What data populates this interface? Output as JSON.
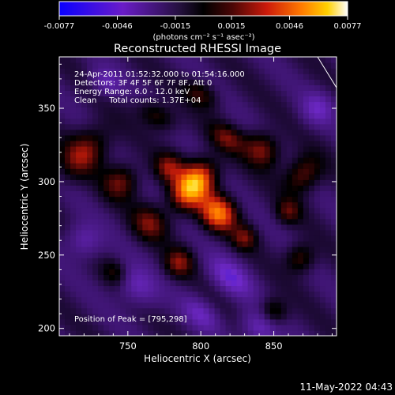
{
  "chart_data": {
    "type": "heatmap",
    "title": "Reconstructed RHESSI Image",
    "xlabel": "Heliocentric X (arcsec)",
    "ylabel": "Heliocentric Y (arcsec)",
    "xlim": [
      703,
      893
    ],
    "ylim": [
      195,
      385
    ],
    "x_ticks": [
      "750",
      "800",
      "850"
    ],
    "x_tick_values": [
      750,
      800,
      850
    ],
    "y_ticks": [
      "200",
      "250",
      "300",
      "350"
    ],
    "y_tick_values": [
      200,
      250,
      300,
      350
    ],
    "colorbar": {
      "ticks": [
        "-0.0077",
        "-0.0046",
        "-0.0015",
        "0.0015",
        "0.0046",
        "0.0077"
      ],
      "tick_values": [
        -0.0077,
        -0.0046,
        -0.0015,
        0.0015,
        0.0046,
        0.0077
      ],
      "unit_label": "(photons cm⁻² s⁻¹ asec⁻²)",
      "colormap": "blue-purple-black-red-orange-yellow-white"
    },
    "annotations": [
      "24-Apr-2011 01:52:32.000 to 01:54:16.000",
      "Detectors: 3F 4F 5F 6F 7F 8F, Att 0",
      "Energy Range: 6.0 - 12.0 keV",
      "Clean     Total counts: 1.37E+04"
    ],
    "peak_label": "Position of Peak = [795,298]",
    "peak": [
      795,
      298
    ],
    "limb_line": [
      [
        880,
        385
      ],
      [
        893,
        364
      ]
    ],
    "blobs": [
      {
        "x": 795,
        "y": 298,
        "sx": 8,
        "sy": 12,
        "amp": 1.0,
        "rot": -40
      },
      {
        "x": 812,
        "y": 279,
        "sx": 9,
        "sy": 8,
        "amp": 0.75,
        "rot": -40
      },
      {
        "x": 830,
        "y": 262,
        "sx": 6,
        "sy": 6,
        "amp": 0.35,
        "rot": -40
      },
      {
        "x": 778,
        "y": 310,
        "sx": 7,
        "sy": 7,
        "amp": 0.4,
        "rot": -40
      },
      {
        "x": 720,
        "y": 320,
        "sx": 9,
        "sy": 14,
        "amp": 0.45,
        "rot": -45
      },
      {
        "x": 745,
        "y": 300,
        "sx": 8,
        "sy": 9,
        "amp": 0.38,
        "rot": -45
      },
      {
        "x": 765,
        "y": 272,
        "sx": 9,
        "sy": 8,
        "amp": 0.38,
        "rot": -40
      },
      {
        "x": 785,
        "y": 245,
        "sx": 7,
        "sy": 7,
        "amp": 0.4,
        "rot": -40
      },
      {
        "x": 770,
        "y": 345,
        "sx": 10,
        "sy": 6,
        "amp": 0.32,
        "rot": -30
      },
      {
        "x": 818,
        "y": 330,
        "sx": 9,
        "sy": 6,
        "amp": 0.35,
        "rot": -30
      },
      {
        "x": 842,
        "y": 322,
        "sx": 9,
        "sy": 8,
        "amp": 0.45,
        "rot": -40
      },
      {
        "x": 870,
        "y": 305,
        "sx": 8,
        "sy": 10,
        "amp": 0.4,
        "rot": -40
      },
      {
        "x": 860,
        "y": 280,
        "sx": 6,
        "sy": 6,
        "amp": 0.32,
        "rot": -40
      },
      {
        "x": 868,
        "y": 248,
        "sx": 7,
        "sy": 7,
        "amp": 0.35,
        "rot": -40
      },
      {
        "x": 850,
        "y": 212,
        "sx": 7,
        "sy": 6,
        "amp": 0.32,
        "rot": -40
      },
      {
        "x": 742,
        "y": 238,
        "sx": 7,
        "sy": 6,
        "amp": 0.3,
        "rot": -40
      },
      {
        "x": 800,
        "y": 360,
        "sx": 9,
        "sy": 6,
        "amp": 0.3,
        "rot": -30
      },
      {
        "x": 735,
        "y": 368,
        "sx": 8,
        "sy": 6,
        "amp": -0.3,
        "rot": -30
      },
      {
        "x": 755,
        "y": 230,
        "sx": 12,
        "sy": 8,
        "amp": -0.35,
        "rot": -40
      },
      {
        "x": 820,
        "y": 235,
        "sx": 12,
        "sy": 7,
        "amp": -0.4,
        "rot": -40
      },
      {
        "x": 840,
        "y": 200,
        "sx": 10,
        "sy": 7,
        "amp": -0.35,
        "rot": -40
      },
      {
        "x": 880,
        "y": 350,
        "sx": 8,
        "sy": 8,
        "amp": -0.3,
        "rot": -40
      },
      {
        "x": 720,
        "y": 260,
        "sx": 9,
        "sy": 8,
        "amp": -0.3,
        "rot": -40
      },
      {
        "x": 800,
        "y": 210,
        "sx": 10,
        "sy": 6,
        "amp": -0.3,
        "rot": -40
      }
    ]
  },
  "footer": {
    "timestamp": "11-May-2022 04:43"
  }
}
